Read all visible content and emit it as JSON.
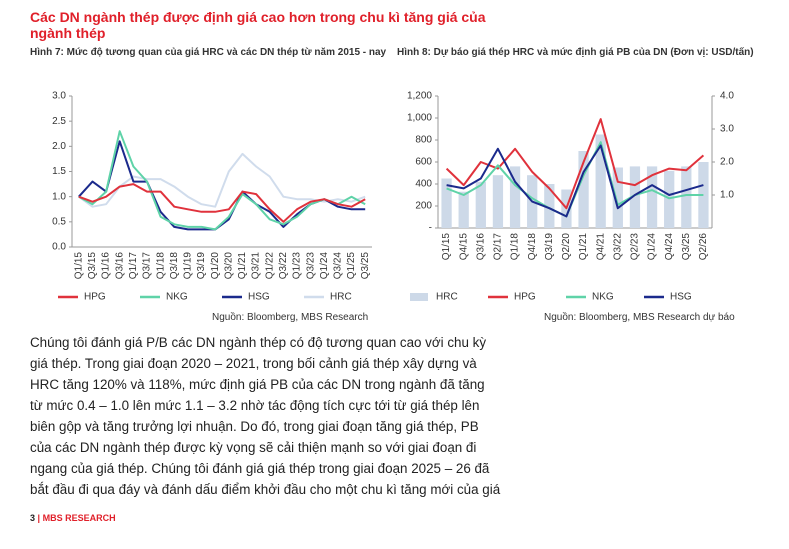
{
  "heading": "Các DN ngành thép được định giá cao hơn trong chu kì tăng giá của ngành thép",
  "chart_data": [
    {
      "type": "line",
      "title": "Hình 7: Mức độ tương quan của giá HRC và các DN thép từ năm 2015 - nay",
      "source": "Nguồn: Bloomberg, MBS Research",
      "categories": [
        "Q1/15",
        "Q3/15",
        "Q1/16",
        "Q3/16",
        "Q1/17",
        "Q3/17",
        "Q1/18",
        "Q3/18",
        "Q1/19",
        "Q3/19",
        "Q1/20",
        "Q3/20",
        "Q1/21",
        "Q3/21",
        "Q1/22",
        "Q3/22",
        "Q1/23",
        "Q3/23",
        "Q1/24",
        "Q3/24",
        "Q1/25",
        "Q3/25"
      ],
      "ylim": [
        0,
        3
      ],
      "yticks": [
        {
          "value": 0,
          "label": "0.0"
        },
        0.5,
        {
          "value": 1,
          "label": "1.0"
        },
        1.5,
        {
          "value": 2,
          "label": "2.0"
        },
        2.5,
        {
          "value": 3,
          "label": "3.0"
        }
      ],
      "grid": false,
      "series": [
        {
          "name": "HPG",
          "color": "#e0323c",
          "values": [
            1.0,
            0.9,
            1.0,
            1.2,
            1.25,
            1.1,
            1.1,
            0.8,
            0.75,
            0.7,
            0.7,
            0.75,
            1.1,
            1.05,
            0.75,
            0.5,
            0.75,
            0.9,
            0.95,
            0.85,
            0.8,
            0.95
          ]
        },
        {
          "name": "NKG",
          "color": "#5fd3a8",
          "values": [
            1.0,
            0.85,
            1.1,
            2.3,
            1.6,
            1.3,
            0.6,
            0.45,
            0.4,
            0.4,
            0.35,
            0.6,
            1.05,
            0.85,
            0.55,
            0.45,
            0.6,
            0.85,
            0.95,
            0.85,
            1.0,
            0.85
          ]
        },
        {
          "name": "HSG",
          "color": "#1b2a8c",
          "values": [
            1.0,
            1.3,
            1.1,
            2.1,
            1.3,
            1.3,
            0.7,
            0.4,
            0.35,
            0.35,
            0.35,
            0.55,
            1.1,
            0.85,
            0.7,
            0.4,
            0.65,
            0.85,
            0.95,
            0.8,
            0.75,
            0.75
          ]
        },
        {
          "name": "HRC",
          "color": "#d0dcec",
          "values": [
            1.0,
            0.8,
            0.85,
            1.2,
            1.4,
            1.35,
            1.35,
            1.2,
            1.0,
            0.85,
            0.8,
            1.5,
            1.85,
            1.6,
            1.4,
            1.0,
            0.95,
            0.95,
            0.9,
            0.95,
            0.9,
            1.0
          ]
        }
      ]
    },
    {
      "type": "combo",
      "title": "Hình 8: Dự báo giá thép HRC và mức định giá PB của DN (Đơn vị: USD/tấn)",
      "source": "Nguồn: Bloomberg, MBS Research dự báo",
      "categories": [
        "Q1/15",
        "Q4/15",
        "Q3/16",
        "Q2/17",
        "Q1/18",
        "Q4/18",
        "Q3/19",
        "Q2/20",
        "Q1/21",
        "Q4/21",
        "Q3/22",
        "Q2/23",
        "Q1/24",
        "Q4/24",
        "Q3/25",
        "Q2/26"
      ],
      "ylim": [
        0,
        1200
      ],
      "yticks": [
        {
          "value": 0,
          "label": "-"
        },
        200,
        400,
        600,
        800,
        {
          "value": 1000,
          "label": "1,000"
        },
        {
          "value": 1200,
          "label": "1,200"
        }
      ],
      "y2lim": [
        0,
        4
      ],
      "y2ticks": [
        {
          "value": 1,
          "label": "1.0"
        },
        {
          "value": 2,
          "label": "2.0"
        },
        {
          "value": 3,
          "label": "3.0"
        },
        {
          "value": 4,
          "label": "4.0"
        }
      ],
      "grid": false,
      "series": [
        {
          "name": "HRC",
          "type": "bar",
          "color": "#cdd9e8",
          "values": [
            450,
            330,
            420,
            480,
            560,
            480,
            400,
            350,
            700,
            850,
            550,
            560,
            560,
            520,
            560,
            600
          ]
        },
        {
          "name": "HPG",
          "axis": "y2",
          "color": "#e0323c",
          "values": [
            1.8,
            1.3,
            2.0,
            1.8,
            2.4,
            1.7,
            1.2,
            0.6,
            2.0,
            3.3,
            1.4,
            1.3,
            1.6,
            1.8,
            1.75,
            2.2
          ]
        },
        {
          "name": "NKG",
          "axis": "y2",
          "color": "#5fd3a8",
          "values": [
            1.2,
            1.0,
            1.3,
            1.9,
            1.3,
            0.9,
            0.6,
            0.35,
            1.6,
            2.6,
            0.7,
            1.0,
            1.15,
            0.9,
            1.0,
            1.0
          ]
        },
        {
          "name": "HSG",
          "axis": "y2",
          "color": "#1b2a8c",
          "values": [
            1.3,
            1.2,
            1.5,
            2.4,
            1.4,
            0.8,
            0.6,
            0.35,
            1.7,
            2.5,
            0.6,
            1.0,
            1.3,
            1.0,
            1.15,
            1.3
          ]
        }
      ]
    }
  ],
  "paragraph": [
    "Chúng tôi đánh giá P/B các DN ngành thép có độ tương quan cao với chu kỳ",
    "giá thép. Trong giai đoạn 2020 – 2021, trong bối cảnh giá thép xây dựng và",
    "HRC tăng 120% và 118%, mức định giá PB của các DN trong ngành đã tăng",
    "từ mức 0.4 – 1.0 lên mức 1.1 – 3.2 nhờ tác động tích cực tới từ giá thép lên",
    "biên gộp và tăng trưởng lợi nhuận. Do đó, trong giai đoạn tăng giá thép, PB",
    "của các DN ngành thép được kỳ vọng sẽ cải thiện mạnh so với giai đoạn đi",
    "ngang của giá thép. Chúng tôi đánh giá giá thép trong giai đoạn 2025 – 26 đã",
    "bắt đầu đi qua đáy và đánh dấu điểm khởi đầu cho một chu kì tăng mới của giá"
  ],
  "footer": {
    "page": "3",
    "brand": "MBS RESEARCH"
  }
}
